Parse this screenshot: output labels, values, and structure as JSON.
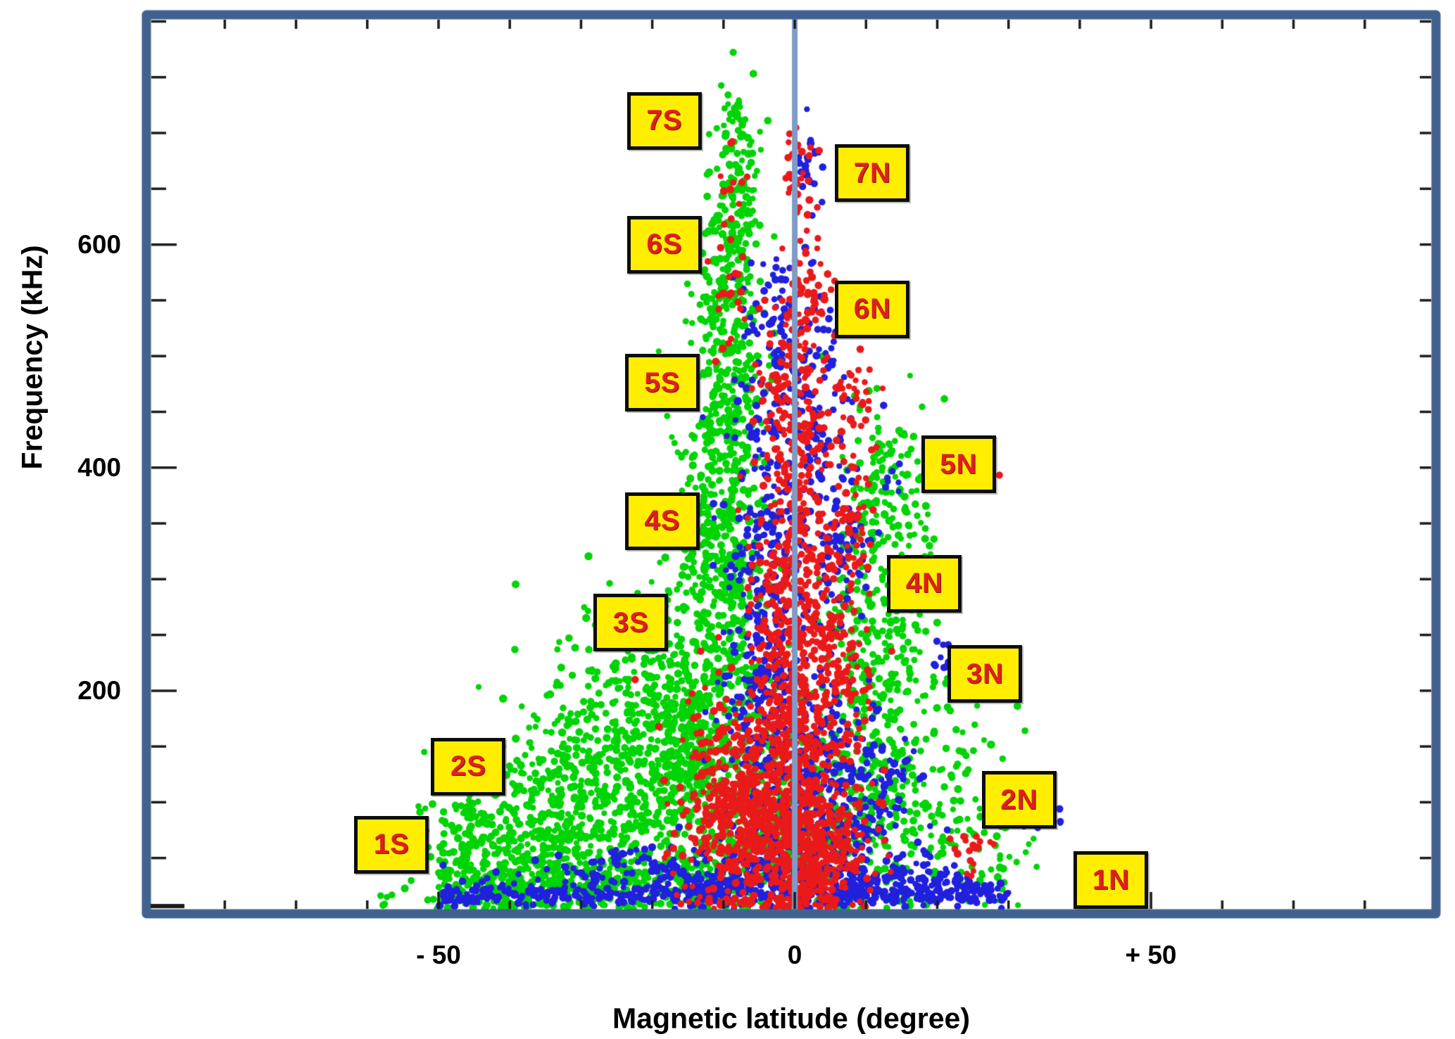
{
  "styles": {
    "background": "#ffffff",
    "frame_color": "#41628e",
    "zero_line_color": "#7e9cc5",
    "tick_color": "#1b1b1b",
    "text_color": "#000000",
    "annotation_bg": "#ffee00",
    "annotation_border": "#0d0d0d",
    "annotation_text": "#dd1f1f"
  },
  "chart_data": {
    "type": "scatter",
    "title": "",
    "xlabel": "Magnetic latitude (degree)",
    "ylabel": "Frequency (kHz)",
    "xlim": [
      -91,
      90
    ],
    "ylim": [
      0,
      806
    ],
    "x_minor_step": 10,
    "y_minor_step": 50,
    "grid": false,
    "legend": "none",
    "zero_line_x": 0,
    "x_major_ticks": [
      {
        "value": -50,
        "label": "- 50"
      },
      {
        "value": 0,
        "label": "0"
      },
      {
        "value": 50,
        "label": "+ 50"
      }
    ],
    "y_major_ticks": [
      {
        "value": 200,
        "label": "200"
      },
      {
        "value": 400,
        "label": "400"
      },
      {
        "value": 600,
        "label": "600"
      }
    ],
    "annotations": [
      {
        "label": "7S",
        "x": -18.3,
        "y": 711
      },
      {
        "label": "6S",
        "x": -18.3,
        "y": 600
      },
      {
        "label": "5S",
        "x": -18.6,
        "y": 476
      },
      {
        "label": "4S",
        "x": -18.6,
        "y": 352
      },
      {
        "label": "3S",
        "x": -23.0,
        "y": 261
      },
      {
        "label": "2S",
        "x": -45.8,
        "y": 132
      },
      {
        "label": "1S",
        "x": -56.6,
        "y": 62
      },
      {
        "label": "7N",
        "x": 10.9,
        "y": 664
      },
      {
        "label": "6N",
        "x": 10.9,
        "y": 542
      },
      {
        "label": "5N",
        "x": 23.0,
        "y": 403
      },
      {
        "label": "4N",
        "x": 18.2,
        "y": 296
      },
      {
        "label": "3N",
        "x": 26.7,
        "y": 215
      },
      {
        "label": "2N",
        "x": 31.5,
        "y": 102
      },
      {
        "label": "1N",
        "x": 44.4,
        "y": 30
      }
    ],
    "marker_radius_px": 5,
    "series": [
      {
        "name": "green-emissions",
        "color": "#00d405",
        "clusters": [
          {
            "kind": "gauss",
            "cx": -40,
            "cy": 55,
            "sx": 8,
            "sy": 35,
            "n": 380
          },
          {
            "kind": "gauss",
            "cx": -30,
            "cy": 95,
            "sx": 8,
            "sy": 50,
            "n": 380
          },
          {
            "kind": "gauss",
            "cx": -21,
            "cy": 150,
            "sx": 7,
            "sy": 60,
            "n": 360
          },
          {
            "kind": "gauss",
            "cx": -14,
            "cy": 200,
            "sx": 5,
            "sy": 65,
            "n": 300
          },
          {
            "kind": "gauss",
            "cx": -11,
            "cy": 120,
            "sx": 5,
            "sy": 60,
            "n": 280
          },
          {
            "kind": "band",
            "x0": -50,
            "x1": -8,
            "cy": 28,
            "sy": 13,
            "n": 260
          },
          {
            "kind": "gauss",
            "cx": -10,
            "cy": 330,
            "sx": 3,
            "sy": 80,
            "n": 330
          },
          {
            "kind": "gauss",
            "cx": -9.5,
            "cy": 470,
            "sx": 2.6,
            "sy": 70,
            "n": 260
          },
          {
            "kind": "gauss",
            "cx": -8.7,
            "cy": 590,
            "sx": 2.0,
            "sy": 45,
            "n": 150
          },
          {
            "kind": "gauss",
            "cx": -8.2,
            "cy": 670,
            "sx": 1.7,
            "sy": 35,
            "n": 70
          },
          {
            "kind": "gauss",
            "cx": -8,
            "cy": 725,
            "sx": 1.2,
            "sy": 12,
            "n": 16
          },
          {
            "kind": "gauss",
            "cx": 7,
            "cy": 90,
            "sx": 6,
            "sy": 50,
            "n": 300
          },
          {
            "kind": "gauss",
            "cx": 11,
            "cy": 230,
            "sx": 3.5,
            "sy": 70,
            "n": 210
          },
          {
            "kind": "gauss",
            "cx": 12,
            "cy": 390,
            "sx": 2.8,
            "sy": 45,
            "n": 120
          },
          {
            "kind": "gauss",
            "cx": 20,
            "cy": 120,
            "sx": 5,
            "sy": 60,
            "n": 110
          },
          {
            "kind": "gauss",
            "cx": 28,
            "cy": 60,
            "sx": 4,
            "sy": 30,
            "n": 45
          },
          {
            "kind": "gauss",
            "cx": -2,
            "cy": 55,
            "sx": 5,
            "sy": 30,
            "n": 140
          },
          {
            "kind": "gauss",
            "cx": 16,
            "cy": 300,
            "sx": 3,
            "sy": 60,
            "n": 60
          }
        ]
      },
      {
        "name": "blue-emissions",
        "color": "#2020dd",
        "clusters": [
          {
            "kind": "band",
            "x0": -50,
            "x1": 30,
            "cy": 18,
            "sy": 6,
            "n": 430
          },
          {
            "kind": "band",
            "x0": -20,
            "x1": 25,
            "cy": 30,
            "sy": 10,
            "n": 230
          },
          {
            "kind": "gauss",
            "cx": 3,
            "cy": 55,
            "sx": 8,
            "sy": 25,
            "n": 180
          },
          {
            "kind": "gauss",
            "cx": -4,
            "cy": 250,
            "sx": 3,
            "sy": 70,
            "n": 160
          },
          {
            "kind": "gauss",
            "cx": -4,
            "cy": 400,
            "sx": 2.6,
            "sy": 70,
            "n": 120
          },
          {
            "kind": "gauss",
            "cx": 2.5,
            "cy": 470,
            "sx": 2.4,
            "sy": 60,
            "n": 110
          },
          {
            "kind": "gauss",
            "cx": -3,
            "cy": 530,
            "sx": 1.8,
            "sy": 30,
            "n": 45
          },
          {
            "kind": "gauss",
            "cx": 2,
            "cy": 670,
            "sx": 1.3,
            "sy": 20,
            "n": 20
          },
          {
            "kind": "gauss",
            "cx": -5,
            "cy": 170,
            "sx": 3,
            "sy": 40,
            "n": 90
          },
          {
            "kind": "gauss",
            "cx": 2,
            "cy": 130,
            "sx": 4,
            "sy": 40,
            "n": 150
          },
          {
            "kind": "gauss",
            "cx": 9,
            "cy": 115,
            "sx": 3,
            "sy": 35,
            "n": 80
          },
          {
            "kind": "gauss",
            "cx": 14,
            "cy": 128,
            "sx": 1.8,
            "sy": 14,
            "n": 22
          },
          {
            "kind": "gauss",
            "cx": 20.5,
            "cy": 230,
            "sx": 1.2,
            "sy": 10,
            "n": 10
          },
          {
            "kind": "gauss",
            "cx": 13.5,
            "cy": 392,
            "sx": 1.4,
            "sy": 7,
            "n": 7
          },
          {
            "kind": "gauss",
            "cx": 35,
            "cy": 80,
            "sx": 2,
            "sy": 10,
            "n": 7
          },
          {
            "kind": "gauss",
            "cx": -22,
            "cy": 42,
            "sx": 9,
            "sy": 12,
            "n": 70
          },
          {
            "kind": "gauss",
            "cx": 6,
            "cy": 330,
            "sx": 2.4,
            "sy": 50,
            "n": 90
          }
        ]
      },
      {
        "name": "red-emissions",
        "color": "#ea1a1a",
        "clusters": [
          {
            "kind": "gauss",
            "cx": -4,
            "cy": 75,
            "sx": 5.5,
            "sy": 38,
            "n": 520
          },
          {
            "kind": "gauss",
            "cx": 3,
            "cy": 55,
            "sx": 4,
            "sy": 28,
            "n": 280
          },
          {
            "kind": "gauss",
            "cx": -9,
            "cy": 115,
            "sx": 3.5,
            "sy": 45,
            "n": 170
          },
          {
            "kind": "gauss",
            "cx": -1.5,
            "cy": 255,
            "sx": 2.4,
            "sy": 75,
            "n": 230
          },
          {
            "kind": "gauss",
            "cx": 1.8,
            "cy": 380,
            "sx": 2.4,
            "sy": 85,
            "n": 200
          },
          {
            "kind": "gauss",
            "cx": -2,
            "cy": 470,
            "sx": 1.8,
            "sy": 45,
            "n": 80
          },
          {
            "kind": "gauss",
            "cx": 2,
            "cy": 550,
            "sx": 1.6,
            "sy": 30,
            "n": 45
          },
          {
            "kind": "gauss",
            "cx": 0.5,
            "cy": 655,
            "sx": 1.5,
            "sy": 28,
            "n": 30
          },
          {
            "kind": "gauss",
            "cx": -0.5,
            "cy": 160,
            "sx": 3,
            "sy": 38,
            "n": 170
          },
          {
            "kind": "gauss",
            "cx": 7.5,
            "cy": 330,
            "sx": 2.2,
            "sy": 60,
            "n": 80
          },
          {
            "kind": "gauss",
            "cx": 9,
            "cy": 455,
            "sx": 1.6,
            "sy": 22,
            "n": 22
          },
          {
            "kind": "gauss",
            "cx": 25.5,
            "cy": 408,
            "sx": 1.4,
            "sy": 7,
            "n": 6
          },
          {
            "kind": "gauss",
            "cx": 24.5,
            "cy": 58,
            "sx": 2,
            "sy": 10,
            "n": 18
          },
          {
            "kind": "gauss",
            "cx": -9.3,
            "cy": 660,
            "sx": 1.2,
            "sy": 28,
            "n": 10
          },
          {
            "kind": "gauss",
            "cx": -9,
            "cy": 550,
            "sx": 1.6,
            "sy": 50,
            "n": 22
          },
          {
            "kind": "gauss",
            "cx": 5,
            "cy": 210,
            "sx": 3,
            "sy": 50,
            "n": 150
          }
        ]
      }
    ]
  }
}
